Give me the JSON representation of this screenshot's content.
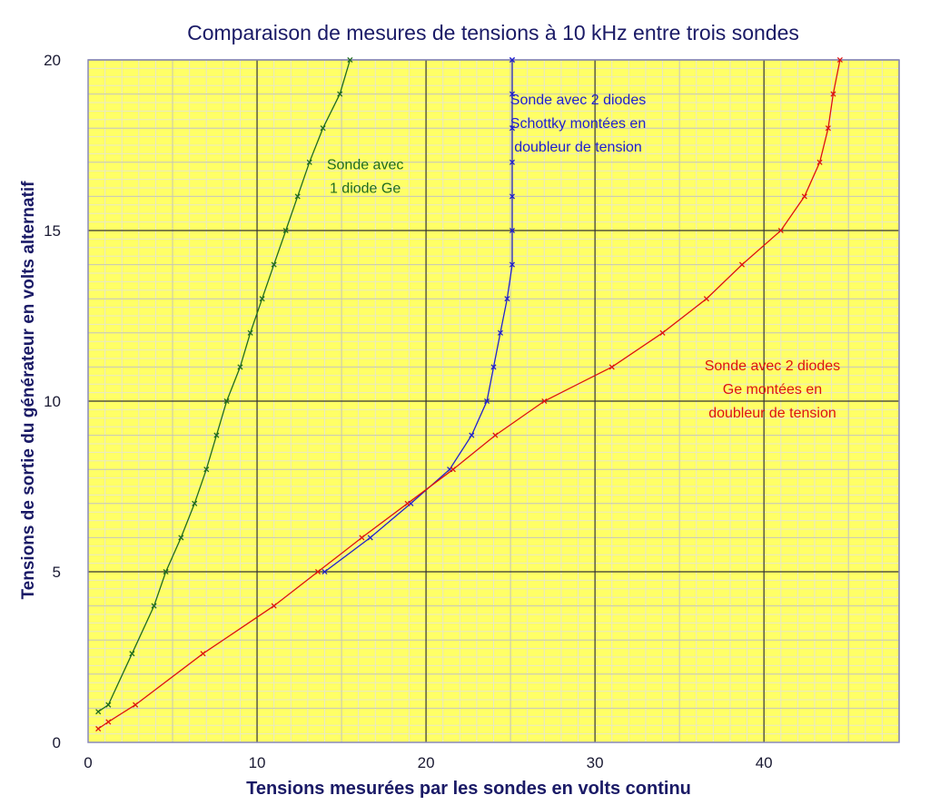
{
  "chart_data": {
    "type": "line",
    "title": "Comparaison de mesures de tensions à 10 kHz entre trois sondes",
    "xlabel": "Tensions mesurées par les sondes en volts continu",
    "ylabel": "Tensions de sortie du générateur en volts alternatif",
    "xlim": [
      0,
      48
    ],
    "ylim": [
      0,
      20
    ],
    "x_ticks": [
      0,
      10,
      20,
      30,
      40
    ],
    "x_tick_labels": [
      "0",
      "10",
      "20",
      "30",
      "40"
    ],
    "y_ticks": [
      0,
      5,
      10,
      15,
      20
    ],
    "y_tick_labels": [
      "0",
      "5",
      "10",
      "15",
      "20"
    ],
    "grid": true,
    "background_color": "#ffff66",
    "minor_grid_color": "#e8e8c8",
    "major_grid_color": "#333333",
    "series": [
      {
        "name": "Sonde avec 1 diode Ge",
        "color": "#1f6b1f",
        "x": [
          0.6,
          1.2,
          2.6,
          3.9,
          4.6,
          5.5,
          6.3,
          7.0,
          7.6,
          8.2,
          9.0,
          9.6,
          10.3,
          11.0,
          11.7,
          12.4,
          13.1,
          13.9,
          14.9,
          15.5
        ],
        "y": [
          0.9,
          1.1,
          2.6,
          4.0,
          5.0,
          6.0,
          7.0,
          8.0,
          9.0,
          10.0,
          11.0,
          12.0,
          13.0,
          14.0,
          15.0,
          16.0,
          17.0,
          18.0,
          19.0,
          20.0
        ]
      },
      {
        "name": "Sonde avec 2 diodes Schottky montées en doubleur de tension",
        "color": "#2020cc",
        "x": [
          14.0,
          16.7,
          19.1,
          21.4,
          22.7,
          23.6,
          24.0,
          24.4,
          24.8,
          25.1,
          25.1,
          25.1,
          25.1,
          25.1,
          25.1,
          25.1,
          25.1
        ],
        "y": [
          5.0,
          6.0,
          7.0,
          8.0,
          9.0,
          10.0,
          11.0,
          12.0,
          13.0,
          14.0,
          15.0,
          16.0,
          17.0,
          18.0,
          19.0,
          20.0,
          20.0
        ]
      },
      {
        "name": "Sonde avec 2 diodes Ge montées en doubleur de tension",
        "color": "#dd1111",
        "x": [
          0.6,
          1.2,
          2.8,
          6.8,
          11.0,
          13.6,
          16.2,
          18.9,
          21.6,
          24.1,
          27.0,
          31.0,
          34.0,
          36.6,
          38.7,
          41.0,
          42.4,
          43.3,
          43.8,
          44.1,
          44.5
        ],
        "y": [
          0.4,
          0.6,
          1.1,
          2.6,
          4.0,
          5.0,
          6.0,
          7.0,
          8.0,
          9.0,
          10.0,
          11.0,
          12.0,
          13.0,
          14.0,
          15.0,
          16.0,
          17.0,
          18.0,
          19.0,
          20.0
        ]
      }
    ],
    "annotations": [
      {
        "lines": [
          "Sonde avec",
          "1 diode Ge"
        ],
        "color": "#1f6b1f",
        "at": [
          16.4,
          16.8
        ]
      },
      {
        "lines": [
          "Sonde avec 2 diodes",
          "Schottky montées en",
          "doubleur de tension"
        ],
        "color": "#2020cc",
        "at": [
          29.0,
          18.7
        ]
      },
      {
        "lines": [
          "Sonde avec 2 diodes",
          "Ge montées en",
          "doubleur de tension"
        ],
        "color": "#dd1111",
        "at": [
          40.5,
          10.9
        ]
      }
    ]
  }
}
